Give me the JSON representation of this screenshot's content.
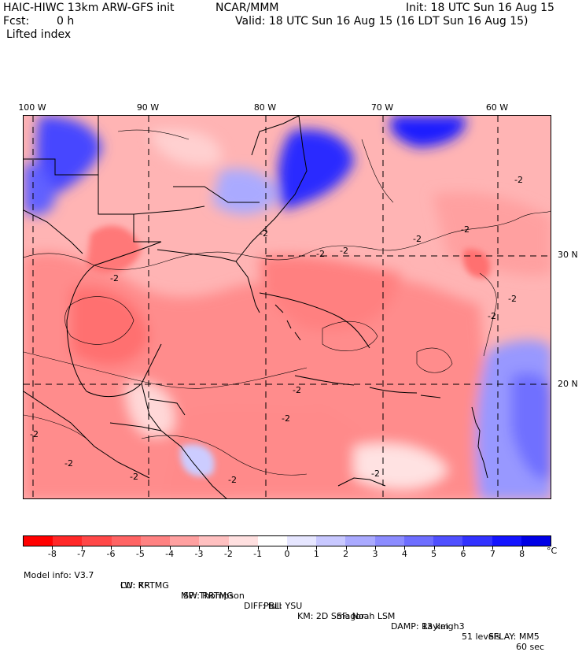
{
  "header": {
    "model": "HAIC-HIWC 13km ARW-GFS init",
    "org": "NCAR/MMM",
    "init": "Init: 18 UTC Sun 16 Aug 15",
    "fcst_label": "Fcst:",
    "fcst_value": "0 h",
    "valid": "Valid: 18 UTC Sun 16 Aug 15 (16 LDT Sun 16 Aug 15)",
    "field": "Lifted index"
  },
  "longitude_labels": [
    "100 W",
    "90 W",
    "80 W",
    "70 W",
    "60 W"
  ],
  "latitude_labels": [
    "30 N",
    "20 N"
  ],
  "contour_label": "-2",
  "colorbar": {
    "colors": [
      "#ff0000",
      "#ff2828",
      "#ff4848",
      "#ff6464",
      "#ff8282",
      "#ffa0a0",
      "#ffc0c0",
      "#ffe0e0",
      "#ffffff",
      "#e6e6ff",
      "#c8c8ff",
      "#aaaaff",
      "#8c8cff",
      "#6e6eff",
      "#5050ff",
      "#3232ff",
      "#1414ff",
      "#0000e6"
    ],
    "labels": [
      "-8",
      "-7",
      "-6",
      "-5",
      "-4",
      "-3",
      "-2",
      "-1",
      "0",
      "1",
      "2",
      "3",
      "4",
      "5",
      "6",
      "7",
      "8"
    ],
    "unit": "°C"
  },
  "model_info": {
    "line1": [
      {
        "label": "Model info: V3.7"
      },
      {
        "label": "CU: KF"
      },
      {
        "label": "MP: Thompson"
      },
      {
        "label": "PBL: YSU"
      },
      {
        "label": "SF: Noah LSM"
      },
      {
        "label": "13 km"
      },
      {
        "label": "51 levels"
      },
      {
        "label": "60 sec"
      }
    ],
    "line2": [
      {
        "label": "LW: RRTMG"
      },
      {
        "label": "SW: RRTMG"
      },
      {
        "label": "DIFF: full"
      },
      {
        "label": "KM: 2D Smagor"
      },
      {
        "label": "DAMP: Rayleigh3"
      },
      {
        "label": "SFLAY: MM5"
      }
    ]
  }
}
